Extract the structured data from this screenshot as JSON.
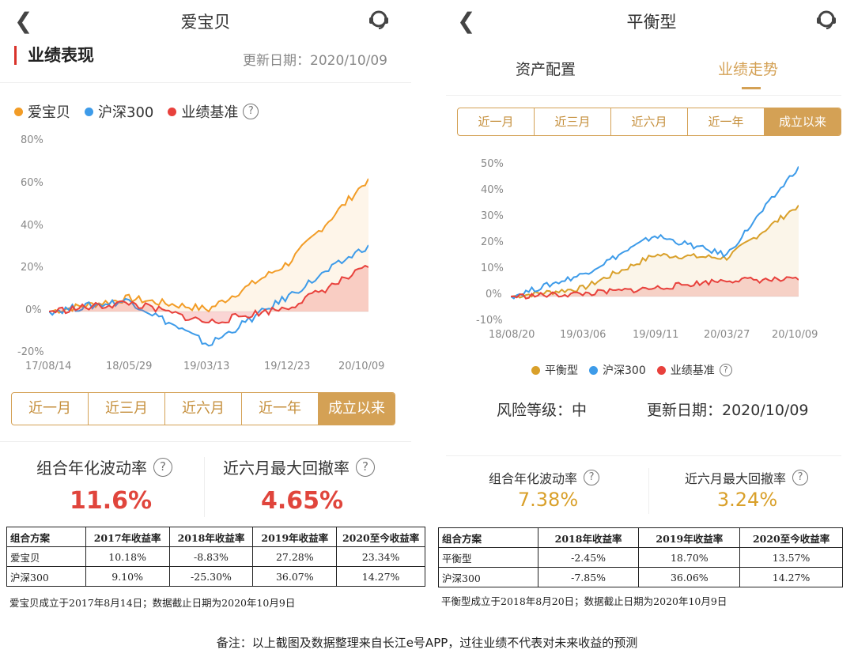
{
  "left": {
    "title": "爱宝贝",
    "section_title": "业绩表现",
    "update_date": "更新日期：2020/10/09",
    "legend": [
      {
        "name": "爱宝贝",
        "color": "#f29c26"
      },
      {
        "name": "沪深300",
        "color": "#3d9be9"
      },
      {
        "name": "业绩基准",
        "color": "#e8413c"
      }
    ],
    "y_ticks": [
      "80%",
      "60%",
      "40%",
      "20%",
      "0%",
      "-20%"
    ],
    "x_ticks": [
      "17/08/14",
      "18/05/29",
      "19/03/13",
      "19/12/23",
      "20/10/09"
    ],
    "range_buttons": [
      "近一月",
      "近三月",
      "近六月",
      "近一年",
      "成立以来"
    ],
    "active_range": "成立以来",
    "metrics": [
      {
        "label": "组合年化波动率",
        "value": "11.6%"
      },
      {
        "label": "近六月最大回撤率",
        "value": "4.65%"
      }
    ],
    "table": {
      "headers": [
        "组合方案",
        "2017年收益率",
        "2018年收益率",
        "2019年收益率",
        "2020至今收益率"
      ],
      "rows": [
        [
          "爱宝贝",
          "10.18%",
          "-8.83%",
          "27.28%",
          "23.34%"
        ],
        [
          "沪深300",
          "9.10%",
          "-25.30%",
          "36.07%",
          "14.27%"
        ]
      ],
      "note": "爱宝贝成立于2017年8月14日；数据截止日期为2020年10月9日"
    }
  },
  "right": {
    "title": "平衡型",
    "tabs": [
      "资产配置",
      "业绩走势"
    ],
    "active_tab": "业绩走势",
    "range_buttons": [
      "近一月",
      "近三月",
      "近六月",
      "近一年",
      "成立以来"
    ],
    "active_range": "成立以来",
    "y_ticks": [
      "50%",
      "40%",
      "30%",
      "20%",
      "10%",
      "0%",
      "-10%"
    ],
    "x_ticks": [
      "18/08/20",
      "19/03/06",
      "19/09/11",
      "20/03/27",
      "20/10/09"
    ],
    "legend": [
      {
        "name": "平衡型",
        "color": "#d9a02a"
      },
      {
        "name": "沪深300",
        "color": "#3d9be9"
      },
      {
        "name": "业绩基准",
        "color": "#e8413c"
      }
    ],
    "risk_label": "风险等级：中",
    "update_date": "更新日期：2020/10/09",
    "metrics": [
      {
        "label": "组合年化波动率",
        "value": "7.38%"
      },
      {
        "label": "近六月最大回撤率",
        "value": "3.24%"
      }
    ],
    "table": {
      "headers": [
        "组合方案",
        "2018年收益率",
        "2019年收益率",
        "2020至今收益率"
      ],
      "rows": [
        [
          "平衡型",
          "-2.45%",
          "18.70%",
          "13.57%"
        ],
        [
          "沪深300",
          "-7.85%",
          "36.06%",
          "14.27%"
        ]
      ],
      "note": "平衡型成立于2018年8月20日；数据截止日期为2020年10月9日"
    }
  },
  "footer": "备注：以上截图及数据整理来自长江e号APP，过往业绩不代表对未来收益的预测",
  "chart_data": [
    {
      "type": "line",
      "title": "",
      "x": [
        "17/08/14",
        "18/05/29",
        "19/03/13",
        "19/12/23",
        "20/10/09"
      ],
      "ylim": [
        -20,
        80
      ],
      "y_unit": "%",
      "series": [
        {
          "name": "爱宝贝",
          "color": "#f29c26",
          "values": [
            0,
            6,
            1,
            22,
            60
          ]
        },
        {
          "name": "沪深300",
          "color": "#3d9be9",
          "values": [
            0,
            5,
            -15,
            7,
            30
          ]
        },
        {
          "name": "业绩基准",
          "color": "#e8413c",
          "values": [
            0,
            4,
            -5,
            2,
            20
          ]
        }
      ]
    },
    {
      "type": "line",
      "title": "",
      "x": [
        "18/08/20",
        "19/03/06",
        "19/09/11",
        "20/03/27",
        "20/10/09"
      ],
      "ylim": [
        -10,
        50
      ],
      "y_unit": "%",
      "series": [
        {
          "name": "平衡型",
          "color": "#d9a02a",
          "values": [
            0,
            3,
            15,
            14,
            33
          ]
        },
        {
          "name": "沪深300",
          "color": "#3d9be9",
          "values": [
            0,
            8,
            22,
            15,
            47
          ]
        },
        {
          "name": "业绩基准",
          "color": "#e8413c",
          "values": [
            0,
            1,
            3,
            6,
            6
          ]
        }
      ]
    }
  ]
}
